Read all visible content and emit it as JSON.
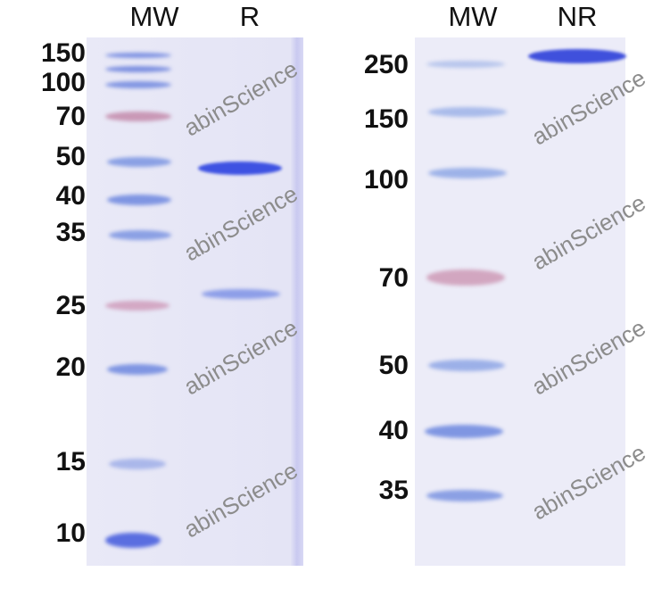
{
  "left_panel": {
    "lane_headers": [
      "MW",
      "R"
    ],
    "marker_labels": [
      "150",
      "100",
      "70",
      "50",
      "40",
      "35",
      "25",
      "20",
      "15",
      "10"
    ]
  },
  "right_panel": {
    "lane_headers": [
      "MW",
      "NR"
    ],
    "marker_labels": [
      "250",
      "150",
      "100",
      "70",
      "50",
      "40",
      "35"
    ]
  },
  "watermark": "abinScience",
  "colors": {
    "marker_blue": "#6f86de",
    "marker_pink": "#c98aa8",
    "sample_band": "#3a4ee0",
    "gel_background": "#e7e7f6"
  }
}
